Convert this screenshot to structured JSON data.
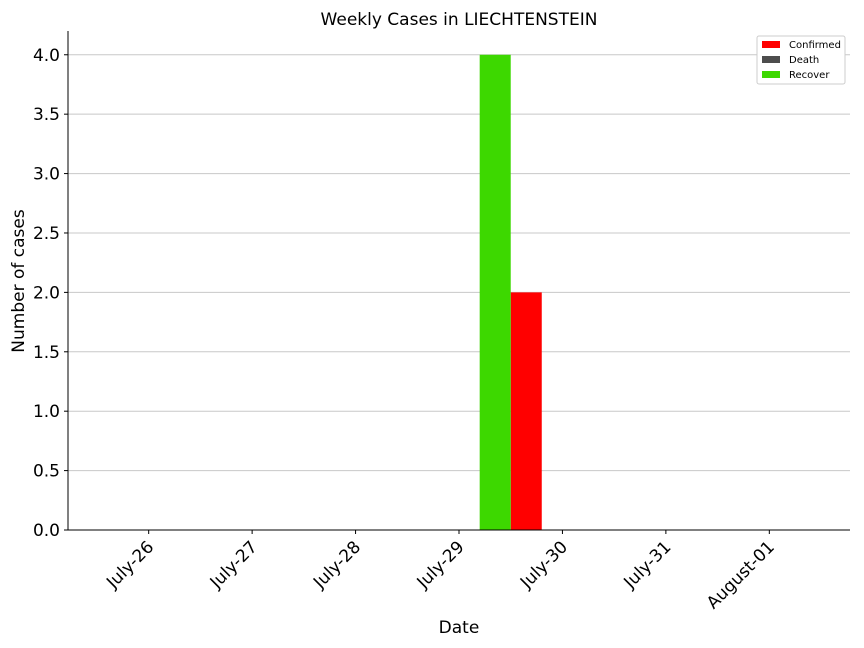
{
  "chart_data": {
    "type": "bar",
    "title": "Weekly Cases in LIECHTENSTEIN",
    "xlabel": "Date",
    "ylabel": "Number of cases",
    "categories": [
      "July-26",
      "July-27",
      "July-28",
      "July-29",
      "July-30",
      "July-31",
      "August-01"
    ],
    "series": [
      {
        "name": "Confirmed",
        "color": "#ff0000",
        "values": [
          0,
          0,
          0,
          0,
          2,
          0,
          0
        ]
      },
      {
        "name": "Death",
        "color": "#4d4d4d",
        "values": [
          0,
          0,
          0,
          0,
          0,
          0,
          0
        ]
      },
      {
        "name": "Recover",
        "color": "#3dd800",
        "values": [
          0,
          0,
          0,
          0,
          4,
          0,
          0
        ]
      }
    ],
    "yticks": [
      "0.0",
      "0.5",
      "1.0",
      "1.5",
      "2.0",
      "2.5",
      "3.0",
      "3.5",
      "4.0"
    ],
    "ylim": [
      0,
      4.2
    ],
    "grid": "y",
    "legend": "top-right"
  }
}
